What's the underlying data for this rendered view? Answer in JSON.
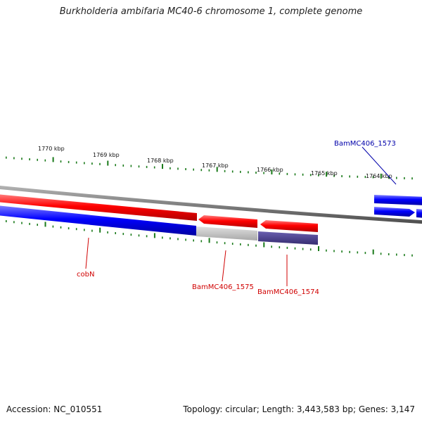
{
  "title": "Burkholderia ambifaria MC40-6 chromosome 1, complete genome",
  "footer": {
    "accession_label": "Accession:",
    "accession": "NC_010551",
    "topology_label": "Topology:",
    "topology": "circular",
    "length_label": "Length:",
    "length": "3,443,583 bp",
    "genes_label": "Genes:",
    "genes": "3,147"
  },
  "scale_labels": [
    "1770 kbp",
    "1769 kbp",
    "1768 kbp",
    "1767 kbp",
    "1766 kbp",
    "1765 kbp",
    "1764 kbp"
  ],
  "genes_shown": [
    {
      "name": "cobN",
      "strand": "reverse",
      "color": "#e00000"
    },
    {
      "name": "BamMC406_1575",
      "strand": "reverse",
      "color": "#e00000"
    },
    {
      "name": "BamMC406_1574",
      "strand": "reverse",
      "color": "#e00000"
    },
    {
      "name": "BamMC406_1573",
      "strand": "forward",
      "color": "#0000cc"
    }
  ],
  "colors": {
    "backbone": "#7a7a7a",
    "reverse_gene": "#ff1a1a",
    "forward_gene": "#1a1aff",
    "cds_blue": "#2020e0",
    "cds_grey": "#b4b4b4",
    "cds_purple": "#4a3f8f",
    "ticks": "#1a7a1a",
    "reverse_label": "#d00000",
    "forward_label": "#0000aa"
  }
}
